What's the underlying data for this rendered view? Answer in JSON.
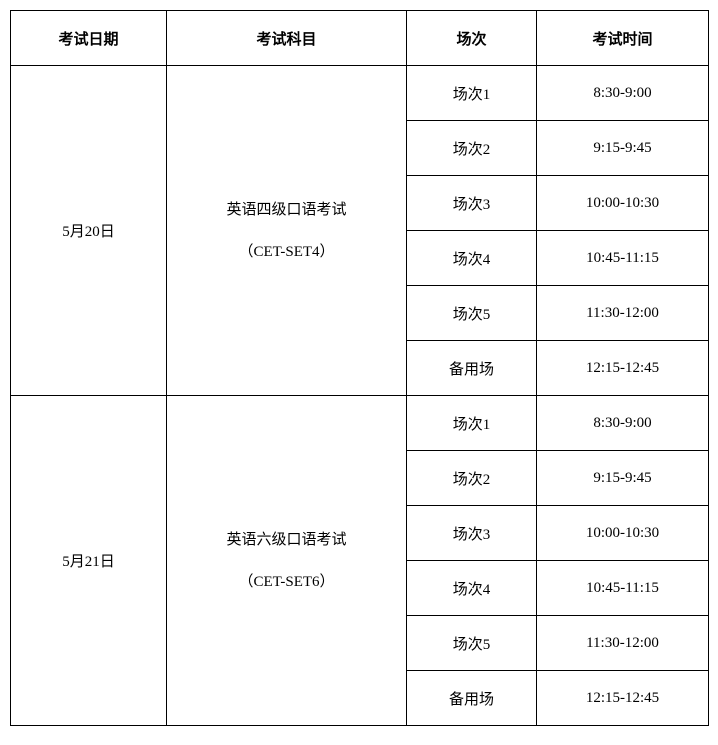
{
  "headers": {
    "date": "考试日期",
    "subject": "考试科目",
    "session": "场次",
    "time": "考试时间"
  },
  "groups": [
    {
      "date": "5月20日",
      "subject_line1": "英语四级口语考试",
      "subject_line2": "（CET-SET4）",
      "rows": [
        {
          "session": "场次1",
          "time": "8:30-9:00"
        },
        {
          "session": "场次2",
          "time": "9:15-9:45"
        },
        {
          "session": "场次3",
          "time": "10:00-10:30"
        },
        {
          "session": "场次4",
          "time": "10:45-11:15"
        },
        {
          "session": "场次5",
          "time": "11:30-12:00"
        },
        {
          "session": "备用场",
          "time": "12:15-12:45"
        }
      ]
    },
    {
      "date": "5月21日",
      "subject_line1": "英语六级口语考试",
      "subject_line2": "（CET-SET6）",
      "rows": [
        {
          "session": "场次1",
          "time": "8:30-9:00"
        },
        {
          "session": "场次2",
          "time": "9:15-9:45"
        },
        {
          "session": "场次3",
          "time": "10:00-10:30"
        },
        {
          "session": "场次4",
          "time": "10:45-11:15"
        },
        {
          "session": "场次5",
          "time": "11:30-12:00"
        },
        {
          "session": "备用场",
          "time": "12:15-12:45"
        }
      ]
    }
  ]
}
